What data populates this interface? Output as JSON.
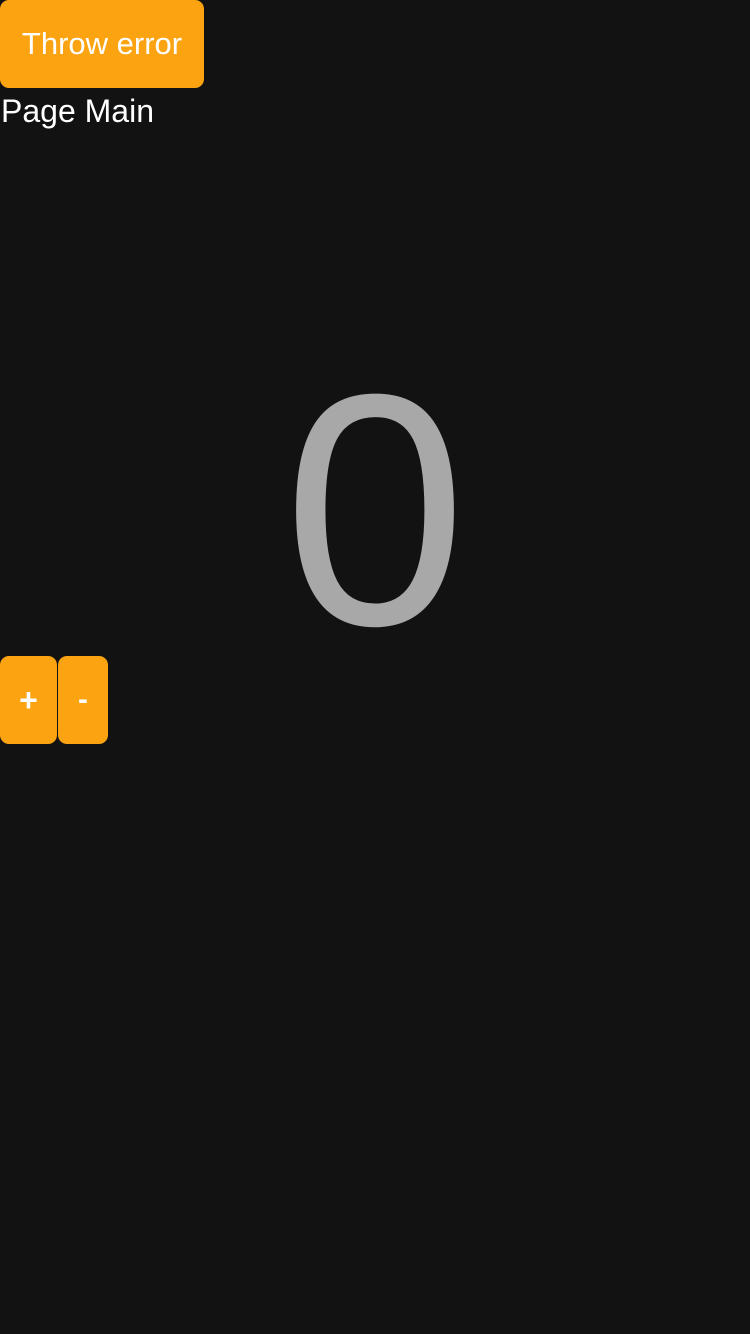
{
  "header": {
    "throw_error_label": "Throw error",
    "page_title": "Page Main"
  },
  "counter": {
    "value": "0"
  },
  "stepper": {
    "increment_label": "+",
    "decrement_label": "-"
  },
  "colors": {
    "background": "#121212",
    "accent": "#fca311",
    "counter_text": "#a9a8a8",
    "text": "#ffffff"
  }
}
